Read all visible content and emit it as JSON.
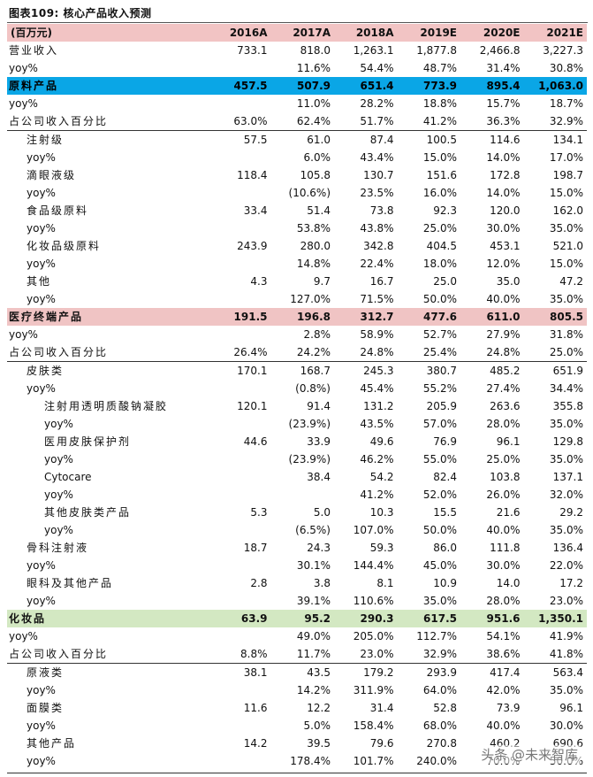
{
  "title": "图表109:   核心产品收入预测",
  "header": [
    "(百万元)",
    "2016A",
    "2017A",
    "2018A",
    "2019E",
    "2020E",
    "2021E"
  ],
  "rows": [
    {
      "label": "营业收入",
      "values": [
        "733.1",
        "818.0",
        "1,263.1",
        "1,877.8",
        "2,466.8",
        "3,227.3"
      ],
      "indent": 0,
      "style": ""
    },
    {
      "label": "yoy%",
      "values": [
        "",
        "11.6%",
        "54.4%",
        "48.7%",
        "31.4%",
        "30.8%"
      ],
      "indent": 0,
      "style": ""
    },
    {
      "label": "原料产品",
      "values": [
        "457.5",
        "507.9",
        "651.4",
        "773.9",
        "895.4",
        "1,063.0"
      ],
      "indent": 0,
      "style": "hl-blue"
    },
    {
      "label": "yoy%",
      "values": [
        "",
        "11.0%",
        "28.2%",
        "18.8%",
        "15.7%",
        "18.7%"
      ],
      "indent": 0,
      "style": ""
    },
    {
      "label": "占公司收入百分比",
      "values": [
        "63.0%",
        "62.4%",
        "51.7%",
        "41.2%",
        "36.3%",
        "32.9%"
      ],
      "indent": 0,
      "style": ""
    },
    {
      "label": "注射级",
      "values": [
        "57.5",
        "61.0",
        "87.4",
        "100.5",
        "114.6",
        "134.1"
      ],
      "indent": 1,
      "style": "rule-top"
    },
    {
      "label": "yoy%",
      "values": [
        "",
        "6.0%",
        "43.4%",
        "15.0%",
        "14.0%",
        "17.0%"
      ],
      "indent": 1,
      "style": ""
    },
    {
      "label": "滴眼液级",
      "values": [
        "118.4",
        "105.8",
        "130.7",
        "151.6",
        "172.8",
        "198.7"
      ],
      "indent": 1,
      "style": ""
    },
    {
      "label": "yoy%",
      "values": [
        "",
        "(10.6%)",
        "23.5%",
        "16.0%",
        "14.0%",
        "15.0%"
      ],
      "indent": 1,
      "style": ""
    },
    {
      "label": "食品级原料",
      "values": [
        "33.4",
        "51.4",
        "73.8",
        "92.3",
        "120.0",
        "162.0"
      ],
      "indent": 1,
      "style": ""
    },
    {
      "label": "yoy%",
      "values": [
        "",
        "53.8%",
        "43.8%",
        "25.0%",
        "30.0%",
        "35.0%"
      ],
      "indent": 1,
      "style": ""
    },
    {
      "label": "化妆品级原料",
      "values": [
        "243.9",
        "280.0",
        "342.8",
        "404.5",
        "453.1",
        "521.0"
      ],
      "indent": 1,
      "style": ""
    },
    {
      "label": "yoy%",
      "values": [
        "",
        "14.8%",
        "22.4%",
        "18.0%",
        "12.0%",
        "15.0%"
      ],
      "indent": 1,
      "style": ""
    },
    {
      "label": "其他",
      "values": [
        "4.3",
        "9.7",
        "16.7",
        "25.0",
        "35.0",
        "47.2"
      ],
      "indent": 1,
      "style": ""
    },
    {
      "label": "yoy%",
      "values": [
        "",
        "127.0%",
        "71.5%",
        "50.0%",
        "40.0%",
        "35.0%"
      ],
      "indent": 1,
      "style": ""
    },
    {
      "label": "医疗终端产品",
      "values": [
        "191.5",
        "196.8",
        "312.7",
        "477.6",
        "611.0",
        "805.5"
      ],
      "indent": 0,
      "style": "hl-pink"
    },
    {
      "label": "yoy%",
      "values": [
        "",
        "2.8%",
        "58.9%",
        "52.7%",
        "27.9%",
        "31.8%"
      ],
      "indent": 0,
      "style": ""
    },
    {
      "label": "占公司收入百分比",
      "values": [
        "26.4%",
        "24.2%",
        "24.8%",
        "25.4%",
        "24.8%",
        "25.0%"
      ],
      "indent": 0,
      "style": ""
    },
    {
      "label": "皮肤类",
      "values": [
        "170.1",
        "168.7",
        "245.3",
        "380.7",
        "485.2",
        "651.9"
      ],
      "indent": 1,
      "style": "rule-top"
    },
    {
      "label": "yoy%",
      "values": [
        "",
        "(0.8%)",
        "45.4%",
        "55.2%",
        "27.4%",
        "34.4%"
      ],
      "indent": 1,
      "style": ""
    },
    {
      "label": "注射用透明质酸钠凝胶",
      "values": [
        "120.1",
        "91.4",
        "131.2",
        "205.9",
        "263.6",
        "355.8"
      ],
      "indent": 2,
      "style": ""
    },
    {
      "label": "yoy%",
      "values": [
        "",
        "(23.9%)",
        "43.5%",
        "57.0%",
        "28.0%",
        "35.0%"
      ],
      "indent": 2,
      "style": ""
    },
    {
      "label": "医用皮肤保护剂",
      "values": [
        "44.6",
        "33.9",
        "49.6",
        "76.9",
        "96.1",
        "129.8"
      ],
      "indent": 2,
      "style": ""
    },
    {
      "label": "yoy%",
      "values": [
        "",
        "(23.9%)",
        "46.2%",
        "55.0%",
        "25.0%",
        "35.0%"
      ],
      "indent": 2,
      "style": ""
    },
    {
      "label": "Cytocare",
      "values": [
        "",
        "38.4",
        "54.2",
        "82.4",
        "103.8",
        "137.1"
      ],
      "indent": 2,
      "style": ""
    },
    {
      "label": "yoy%",
      "values": [
        "",
        "",
        "41.2%",
        "52.0%",
        "26.0%",
        "32.0%"
      ],
      "indent": 2,
      "style": ""
    },
    {
      "label": "其他皮肤类产品",
      "values": [
        "5.3",
        "5.0",
        "10.3",
        "15.5",
        "21.6",
        "29.2"
      ],
      "indent": 2,
      "style": ""
    },
    {
      "label": "yoy%",
      "values": [
        "",
        "(6.5%)",
        "107.0%",
        "50.0%",
        "40.0%",
        "35.0%"
      ],
      "indent": 2,
      "style": ""
    },
    {
      "label": "骨科注射液",
      "values": [
        "18.7",
        "24.3",
        "59.3",
        "86.0",
        "111.8",
        "136.4"
      ],
      "indent": 1,
      "style": ""
    },
    {
      "label": "yoy%",
      "values": [
        "",
        "30.1%",
        "144.4%",
        "45.0%",
        "30.0%",
        "22.0%"
      ],
      "indent": 1,
      "style": ""
    },
    {
      "label": "眼科及其他产品",
      "values": [
        "2.8",
        "3.8",
        "8.1",
        "10.9",
        "14.0",
        "17.2"
      ],
      "indent": 1,
      "style": ""
    },
    {
      "label": "yoy%",
      "values": [
        "",
        "39.1%",
        "110.6%",
        "35.0%",
        "28.0%",
        "23.0%"
      ],
      "indent": 1,
      "style": ""
    },
    {
      "label": "化妆品",
      "values": [
        "63.9",
        "95.2",
        "290.3",
        "617.5",
        "951.6",
        "1,350.1"
      ],
      "indent": 0,
      "style": "hl-green"
    },
    {
      "label": "yoy%",
      "values": [
        "",
        "49.0%",
        "205.0%",
        "112.7%",
        "54.1%",
        "41.9%"
      ],
      "indent": 0,
      "style": ""
    },
    {
      "label": "占公司收入百分比",
      "values": [
        "8.8%",
        "11.7%",
        "23.0%",
        "32.9%",
        "38.6%",
        "41.8%"
      ],
      "indent": 0,
      "style": ""
    },
    {
      "label": "原液类",
      "values": [
        "38.1",
        "43.5",
        "179.2",
        "293.9",
        "417.4",
        "563.4"
      ],
      "indent": 1,
      "style": "rule-top"
    },
    {
      "label": "yoy%",
      "values": [
        "",
        "14.2%",
        "311.9%",
        "64.0%",
        "42.0%",
        "35.0%"
      ],
      "indent": 1,
      "style": ""
    },
    {
      "label": "面膜类",
      "values": [
        "11.6",
        "12.2",
        "31.4",
        "52.8",
        "73.9",
        "96.1"
      ],
      "indent": 1,
      "style": ""
    },
    {
      "label": "yoy%",
      "values": [
        "",
        "5.0%",
        "158.4%",
        "68.0%",
        "40.0%",
        "30.0%"
      ],
      "indent": 1,
      "style": ""
    },
    {
      "label": "其他产品",
      "values": [
        "14.2",
        "39.5",
        "79.6",
        "270.8",
        "460.2",
        "690.6"
      ],
      "indent": 1,
      "style": ""
    },
    {
      "label": "yoy%",
      "values": [
        "",
        "178.4%",
        "101.7%",
        "240.0%",
        "70.0%",
        "50.0%"
      ],
      "indent": 1,
      "style": ""
    }
  ],
  "watermark": "头条 @未来智库"
}
